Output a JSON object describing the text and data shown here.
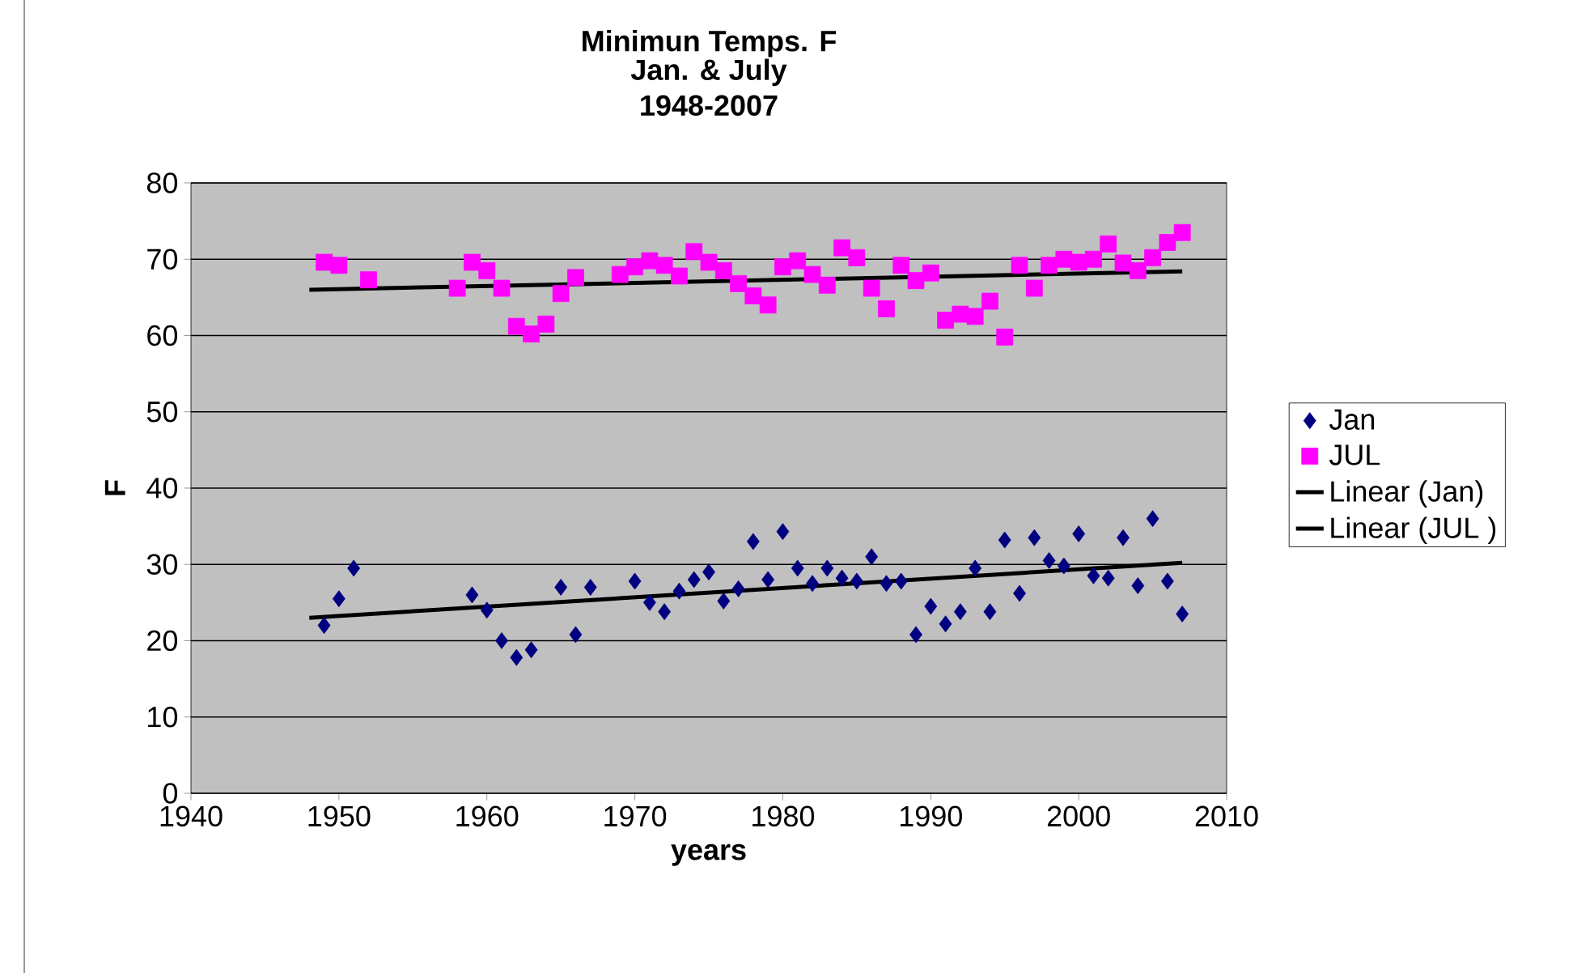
{
  "chart_data": {
    "type": "scatter",
    "title": "Minimun Temps. F",
    "subtitle": "Jan. & July 1948-2007",
    "xlabel": "years",
    "ylabel": "F",
    "xlim": [
      1940,
      2010
    ],
    "xticks": [
      1940,
      1950,
      1960,
      1970,
      1980,
      1990,
      2000,
      2010
    ],
    "ylim": [
      0,
      80
    ],
    "yticks": [
      0,
      10,
      20,
      30,
      40,
      50,
      60,
      70,
      80
    ],
    "grid": "y",
    "legend": "right",
    "series": [
      {
        "name": "Jan",
        "color": "#000080",
        "marker": "diamond",
        "x": [
          1949,
          1950,
          1951,
          1959,
          1960,
          1961,
          1962,
          1963,
          1965,
          1966,
          1967,
          1970,
          1971,
          1972,
          1973,
          1974,
          1975,
          1976,
          1977,
          1978,
          1979,
          1980,
          1981,
          1982,
          1983,
          1984,
          1985,
          1986,
          1987,
          1988,
          1989,
          1990,
          1991,
          1992,
          1993,
          1994,
          1995,
          1996,
          1997,
          1998,
          1999,
          2000,
          2001,
          2002,
          2003,
          2004,
          2005,
          2006,
          2007
        ],
        "values": [
          22,
          25.5,
          29.5,
          26,
          24,
          20,
          17.8,
          18.8,
          27,
          20.8,
          27,
          27.8,
          25,
          23.8,
          26.5,
          28,
          29,
          25.2,
          26.8,
          33,
          28,
          34.3,
          29.5,
          27.5,
          29.5,
          28.2,
          27.8,
          31,
          27.5,
          27.8,
          20.8,
          24.5,
          22.2,
          23.8,
          29.5,
          23.8,
          33.2,
          26.2,
          33.5,
          30.5,
          29.8,
          34,
          28.5,
          28.2,
          33.5,
          27.2,
          36,
          27.8,
          23.5
        ]
      },
      {
        "name": "JUL",
        "color": "#ff00ff",
        "marker": "square",
        "x": [
          1949,
          1950,
          1952,
          1958,
          1959,
          1960,
          1961,
          1962,
          1963,
          1964,
          1965,
          1966,
          1969,
          1970,
          1971,
          1972,
          1973,
          1974,
          1975,
          1976,
          1977,
          1978,
          1979,
          1980,
          1981,
          1982,
          1983,
          1984,
          1985,
          1986,
          1987,
          1988,
          1989,
          1990,
          1991,
          1992,
          1993,
          1994,
          1995,
          1996,
          1997,
          1998,
          1999,
          2000,
          2001,
          2002,
          2003,
          2004,
          2005,
          2006,
          2007
        ],
        "values": [
          69.6,
          69.2,
          67.3,
          66.2,
          69.6,
          68.5,
          66.2,
          61.2,
          60.2,
          61.5,
          65.5,
          67.6,
          68,
          69,
          69.8,
          69.2,
          67.8,
          71,
          69.6,
          68.5,
          66.8,
          65.2,
          64,
          69,
          69.8,
          68,
          66.6,
          71.5,
          70.2,
          66.2,
          63.5,
          69.2,
          67.2,
          68.2,
          62,
          62.8,
          62.5,
          64.5,
          59.8,
          69.2,
          66.2,
          69.2,
          70,
          69.6,
          70,
          72,
          69.5,
          68.5,
          70.2,
          72.2,
          73.5
        ]
      },
      {
        "name": "Linear (Jan)",
        "type": "line",
        "color": "#000000",
        "marker": "none",
        "line_style": "solid",
        "x": [
          1948,
          2007
        ],
        "values": [
          23,
          30.2
        ]
      },
      {
        "name": "Linear (JUL )",
        "type": "line",
        "color": "#000000",
        "marker": "none",
        "line_style": "solid",
        "x": [
          1948,
          2007
        ],
        "values": [
          66,
          68.4
        ]
      }
    ]
  }
}
